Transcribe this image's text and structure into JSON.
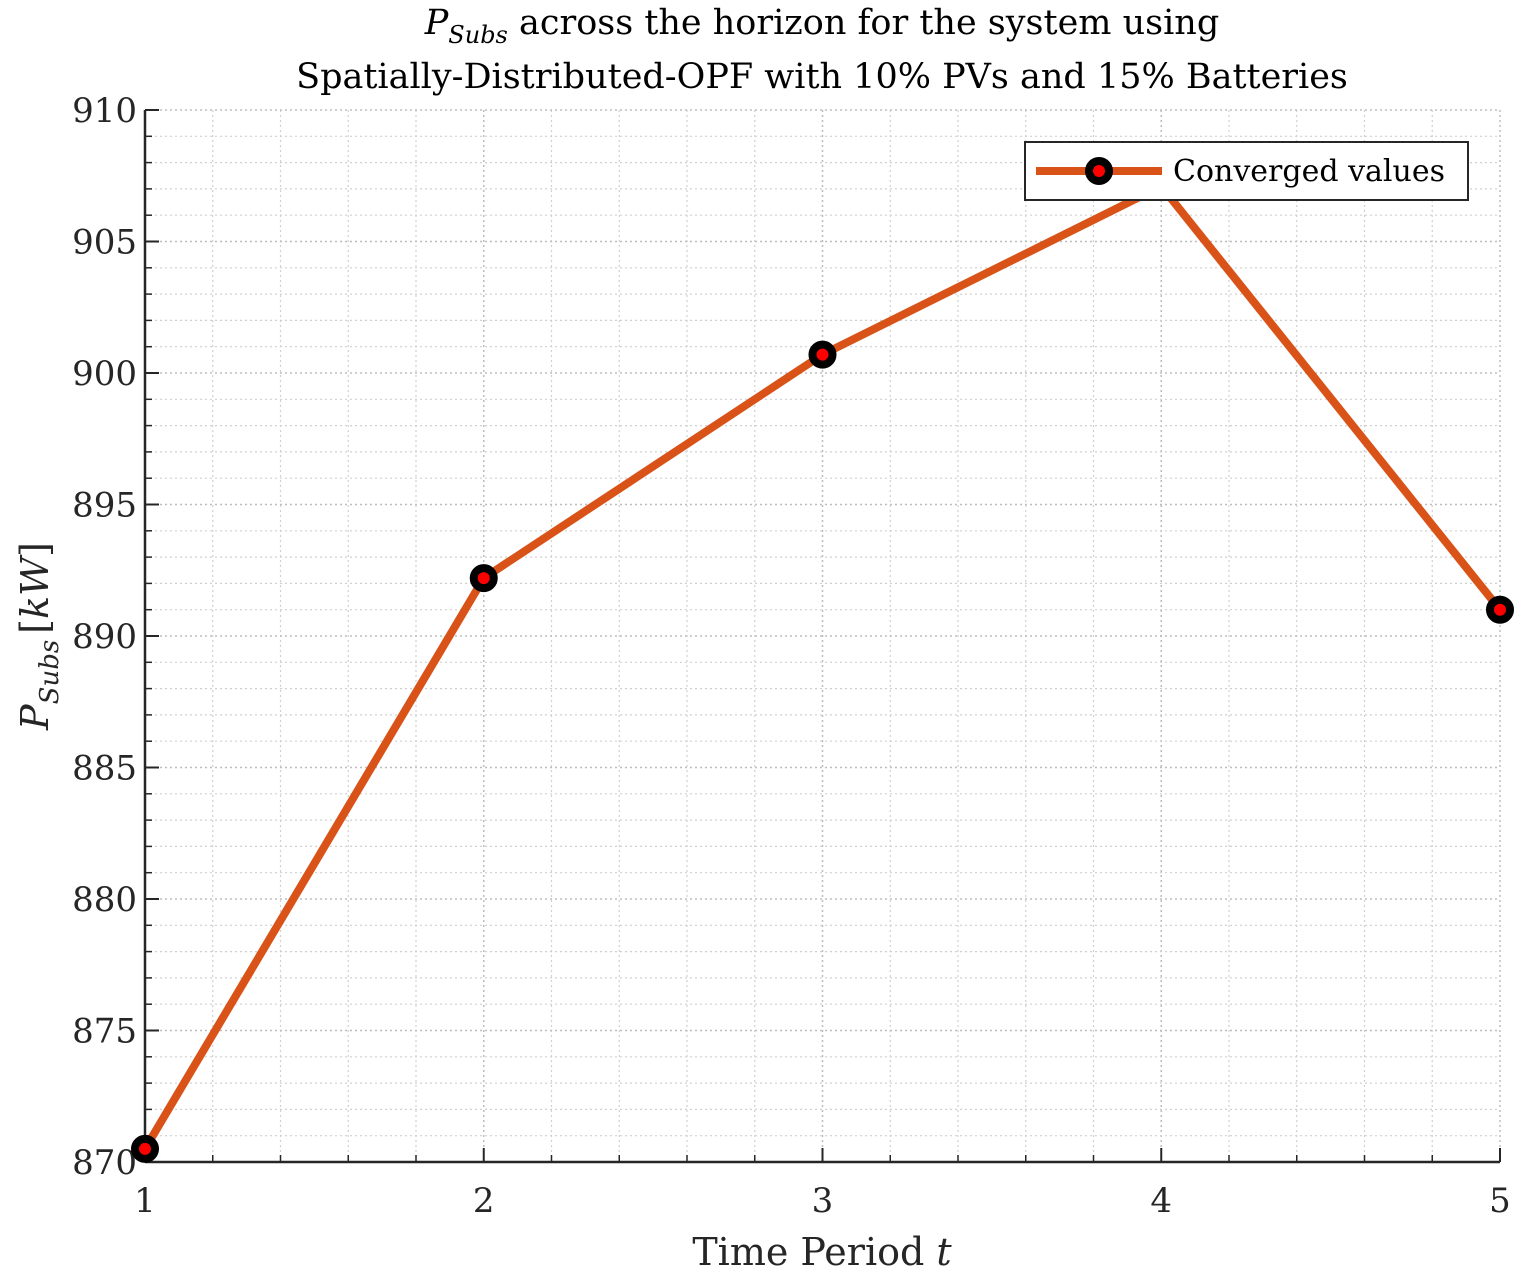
{
  "chart_data": {
    "type": "line",
    "title": {
      "line1_symbol": "P",
      "line1_subscript": "Subs",
      "line1_rest": " across the horizon for the system using",
      "line2": "Spatially-Distributed-OPF with 10% PVs and 15% Batteries"
    },
    "xlabel": {
      "text": "Time Period ",
      "variable": "t"
    },
    "ylabel": {
      "symbol": "P",
      "subscript": "Subs",
      "unit": "kW"
    },
    "xlim": [
      1,
      5
    ],
    "ylim": [
      870,
      910
    ],
    "xticks": [
      1,
      2,
      3,
      4,
      5
    ],
    "yticks": [
      870,
      875,
      880,
      885,
      890,
      895,
      900,
      905,
      910
    ],
    "grid": "major and minor, dotted",
    "legend_placement": "top-right",
    "series": [
      {
        "name": "Converged values",
        "x": [
          1,
          2,
          3,
          4,
          5
        ],
        "y": [
          870.5,
          892.2,
          900.7,
          907.1,
          891.0
        ],
        "line_color": "#D95319",
        "marker_edge_color": "#000000",
        "marker_face_color": "#FF0000"
      }
    ]
  }
}
